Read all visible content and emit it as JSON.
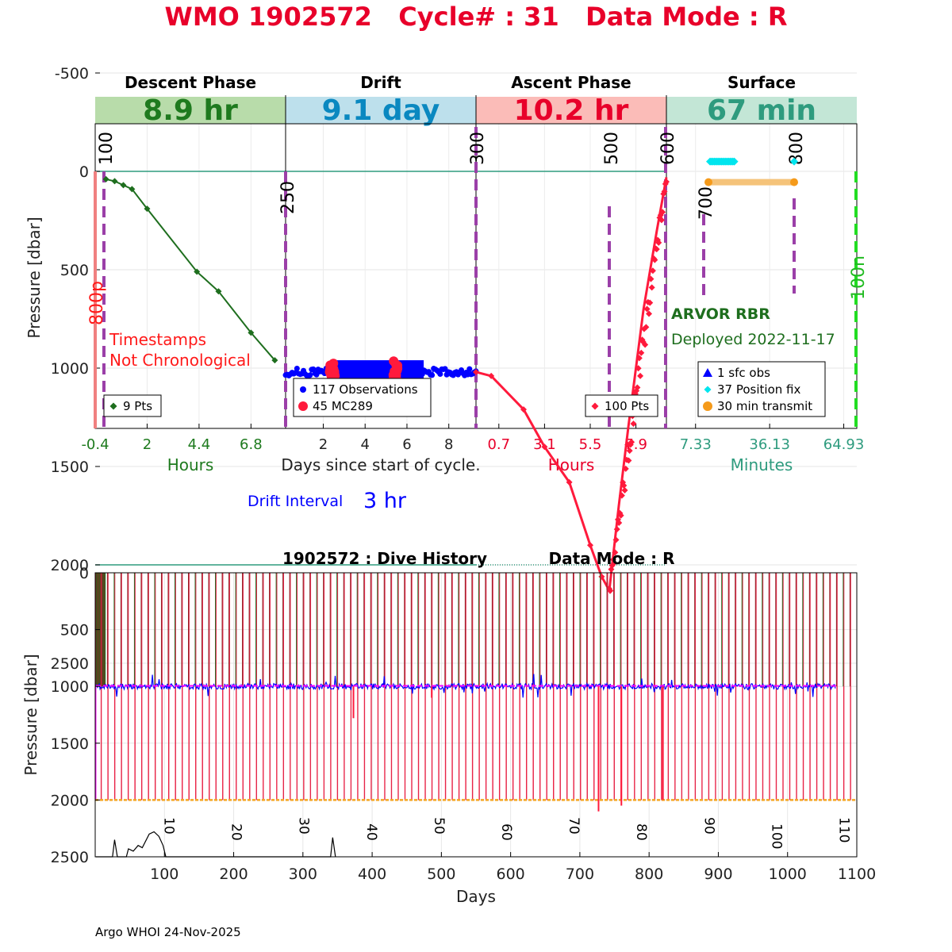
{
  "title": {
    "wmo": "WMO 1902572",
    "cycle": "Cycle# : 31",
    "mode": "Data Mode : R",
    "color": "#e8002a"
  },
  "footer": "Argo WHOI 24-Nov-2025",
  "colors": {
    "descent": "#1e6e1e",
    "drift": "#0000ff",
    "mc": "#ff1a3c",
    "ascent": "#ff1a3c",
    "position": "#00e5ee",
    "transmit": "#f5c37a",
    "transmit_dot": "#f59a1a",
    "teal": "#2e9b7e",
    "purple": "#9b3fa8",
    "green_dash": "#22dd22"
  },
  "chart_data": [
    {
      "type": "line",
      "name": "cycle-profile",
      "ylabel": "Pressure [dbar]",
      "ylim": [
        -800,
        2600
      ],
      "yticks": [
        -500,
        0,
        500,
        1000,
        1500,
        2000,
        2500
      ],
      "xlabel_center": "Days since start of cycle.",
      "phases": [
        {
          "key": "descent",
          "title": "Descent Phase",
          "banner": "8.9 hr",
          "banner_bg": "#b8dcaa",
          "banner_color": "#1e7a1e",
          "unit": "Hours",
          "unit_color": "#1e7a1e",
          "tick_color": "#1e7a1e",
          "xlim": [
            -0.4,
            8.4
          ],
          "xticks": [
            "-0.4",
            "2",
            "4.4",
            "6.8"
          ],
          "series": [
            {
              "name": "descent",
              "points": [
                [
                  0.1,
                  40
                ],
                [
                  0.5,
                  50
                ],
                [
                  0.9,
                  70
                ],
                [
                  1.3,
                  90
                ],
                [
                  2.0,
                  190
                ],
                [
                  4.3,
                  510
                ],
                [
                  5.3,
                  610
                ],
                [
                  6.8,
                  820
                ],
                [
                  7.9,
                  960
                ]
              ]
            }
          ],
          "legend": [
            {
              "label": "9 Pts",
              "marker": "diamond",
              "color": "#1e6e1e"
            }
          ],
          "annotations": [
            {
              "text": "Timestamps",
              "color": "#ff1a1a"
            },
            {
              "text": "Not Chronological",
              "color": "#ff1a1a"
            }
          ]
        },
        {
          "key": "drift",
          "title": "Drift",
          "banner": "9.1 day",
          "banner_bg": "#bde0ec",
          "banner_color": "#0a88c0",
          "xlim": [
            0.2,
            9.3
          ],
          "xticks": [
            "2",
            "4",
            "6",
            "8"
          ],
          "drift_pressure": 1020,
          "mc_groups": [
            [
              2.3,
              2.6
            ],
            [
              5.3,
              5.6
            ]
          ],
          "legend": [
            {
              "label": "117 Observations",
              "marker": "dot",
              "color": "#0000ff"
            },
            {
              "label": "45 MC289",
              "marker": "bigdot",
              "color": "#ff1a3c"
            }
          ],
          "drift_interval": {
            "label": "Drift Interval",
            "value": "3 hr"
          }
        },
        {
          "key": "ascent",
          "title": "Ascent Phase",
          "banner": "10.2 hr",
          "banner_bg": "#fbbcb8",
          "banner_color": "#e8002a",
          "unit": "Hours",
          "unit_color": "#e8002a",
          "tick_color": "#e8002a",
          "xlim": [
            -0.5,
            9.5
          ],
          "xticks": [
            "0.7",
            "3.1",
            "5.5",
            "7.9"
          ],
          "series": [
            {
              "name": "ascent",
              "points": [
                [
                  -0.5,
                  1020
                ],
                [
                  0.3,
                  1040
                ],
                [
                  2.0,
                  1210
                ],
                [
                  3.1,
                  1400
                ],
                [
                  4.4,
                  1580
                ],
                [
                  5.5,
                  1900
                ],
                [
                  6.1,
                  2060
                ],
                [
                  6.5,
                  2130
                ],
                [
                  7.0,
                  1700
                ],
                [
                  7.5,
                  1300
                ],
                [
                  8.3,
                  700
                ],
                [
                  9.0,
                  300
                ],
                [
                  9.5,
                  30
                ]
              ]
            }
          ],
          "legend": [
            {
              "label": "100 Pts",
              "marker": "diamond",
              "color": "#ff1a3c"
            }
          ]
        },
        {
          "key": "surface",
          "title": "Surface",
          "banner": "67 min",
          "banner_bg": "#c3e6d6",
          "banner_color": "#2e9b7e",
          "unit": "Minutes",
          "unit_color": "#2e9b7e",
          "tick_color": "#2e9b7e",
          "xlim": [
            -4.0,
            70.0
          ],
          "xticks": [
            "7.33",
            "36.13",
            "64.93"
          ],
          "float_info": {
            "model": "ARVOR RBR",
            "deployed": "Deployed 2022-11-17"
          },
          "legend": [
            {
              "label": "1 sfc obs",
              "marker": "triangle",
              "color": "#0000ff"
            },
            {
              "label": "37 Position fix",
              "marker": "diamond",
              "color": "#00e5ee"
            },
            {
              "label": "30 min transmit",
              "marker": "bigdot",
              "color": "#f59a1a"
            }
          ]
        }
      ],
      "marker_labels": [
        {
          "text": "100",
          "color": "#000000"
        },
        {
          "text": "250",
          "color": "#000000"
        },
        {
          "text": "300",
          "color": "#000000"
        },
        {
          "text": "500",
          "color": "#000000"
        },
        {
          "text": "600",
          "color": "#000000"
        },
        {
          "text": "700",
          "color": "#000000"
        },
        {
          "text": "800",
          "color": "#000000"
        },
        {
          "text": "800p",
          "color": "#ff1a1a"
        },
        {
          "text": "100n",
          "color": "#22bb22"
        }
      ]
    },
    {
      "type": "line",
      "name": "dive-history",
      "title": "1902572 : Dive History",
      "mode": "Data Mode : R",
      "xlabel": "Days",
      "ylabel": "Pressure [dbar]",
      "xlim": [
        0,
        1100
      ],
      "ylim": [
        0,
        2500
      ],
      "xticks": [
        "100",
        "200",
        "300",
        "400",
        "500",
        "600",
        "700",
        "800",
        "900",
        "1000",
        "1100"
      ],
      "yticks": [
        "0",
        "500",
        "1000",
        "1500",
        "2000",
        "2500"
      ],
      "cycle_period_days": 9.75,
      "n_cycles": 112,
      "profile_depth": 2000,
      "drift_depth": 1000,
      "cycle_labels": [
        "10",
        "20",
        "30",
        "40",
        "50",
        "60",
        "70",
        "80",
        "90",
        "100",
        "110"
      ]
    }
  ]
}
